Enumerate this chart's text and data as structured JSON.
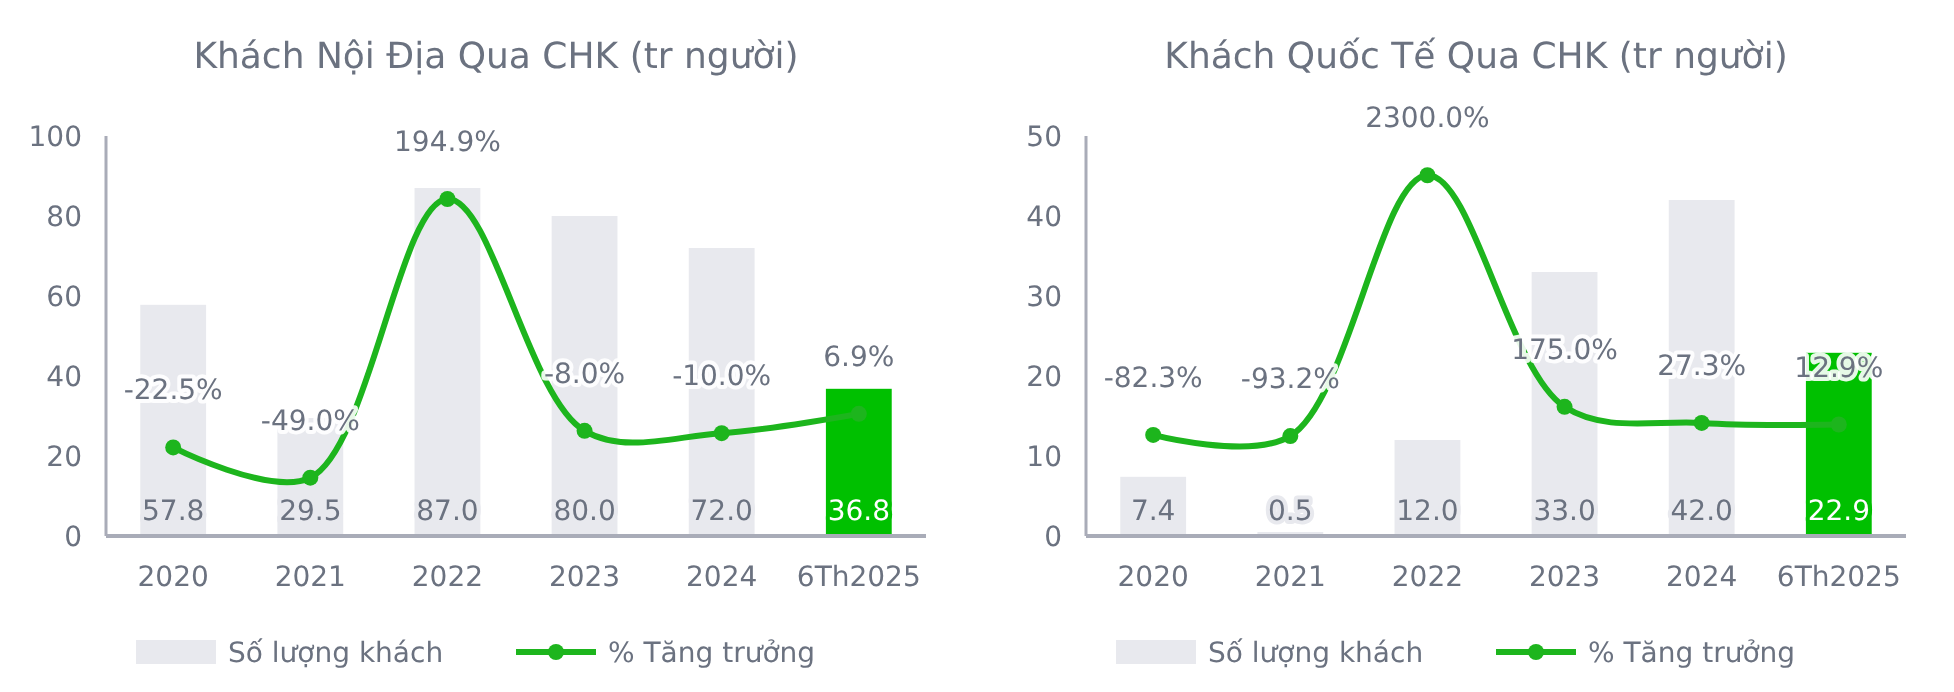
{
  "chart_data": [
    {
      "type": "bar",
      "title": "Khách Nội Địa Qua CHK (tr người)",
      "categories": [
        "2020",
        "2021",
        "2022",
        "2023",
        "2024",
        "6Th2025"
      ],
      "series": [
        {
          "name": "Số lượng khách",
          "colors": [
            "#e8e9ee",
            "#e8e9ee",
            "#e8e9ee",
            "#e8e9ee",
            "#e8e9ee",
            "#00c000"
          ],
          "values": [
            57.8,
            29.5,
            87.0,
            80.0,
            72.0,
            36.8
          ],
          "value_labels": [
            "57.8",
            "29.5",
            "87.0",
            "80.0",
            "72.0",
            "36.8"
          ]
        },
        {
          "name": "% Tăng trưởng",
          "type": "line",
          "axis": "y2",
          "color": "#1db51d",
          "values": [
            -22.5,
            -49.0,
            194.9,
            -8.0,
            -10.0,
            6.9
          ],
          "value_labels": [
            "-22.5%",
            "-49.0%",
            "194.9%",
            "-8.0%",
            "-10.0%",
            "6.9%"
          ]
        }
      ],
      "ylim": [
        0,
        100
      ],
      "yticks": [
        0,
        20,
        40,
        60,
        80,
        100
      ],
      "y2lim": [
        -100,
        250
      ],
      "legend": "bottom",
      "marker": "circle"
    },
    {
      "type": "bar",
      "title": "Khách Quốc Tế Qua CHK (tr người)",
      "categories": [
        "2020",
        "2021",
        "2022",
        "2023",
        "2024",
        "6Th2025"
      ],
      "series": [
        {
          "name": "Số lượng khách",
          "colors": [
            "#e8e9ee",
            "#e8e9ee",
            "#e8e9ee",
            "#e8e9ee",
            "#e8e9ee",
            "#00c000"
          ],
          "values": [
            7.4,
            0.5,
            12.0,
            33.0,
            42.0,
            22.9
          ],
          "value_labels": [
            "7.4",
            "0.5",
            "12.0",
            "33.0",
            "42.0",
            "22.9"
          ]
        },
        {
          "name": "% Tăng trưởng",
          "type": "line",
          "axis": "y2",
          "color": "#1db51d",
          "values": [
            -82.3,
            -93.2,
            2300.0,
            175.0,
            27.3,
            12.9
          ],
          "value_labels": [
            "-82.3%",
            "-93.2%",
            "2300.0%",
            "175.0%",
            "27.3%",
            "12.9%"
          ]
        }
      ],
      "ylim": [
        0,
        50
      ],
      "yticks": [
        0,
        10,
        20,
        30,
        40,
        50
      ],
      "y2lim": [
        -1010,
        2660
      ],
      "legend": "bottom",
      "marker": "circle"
    }
  ]
}
